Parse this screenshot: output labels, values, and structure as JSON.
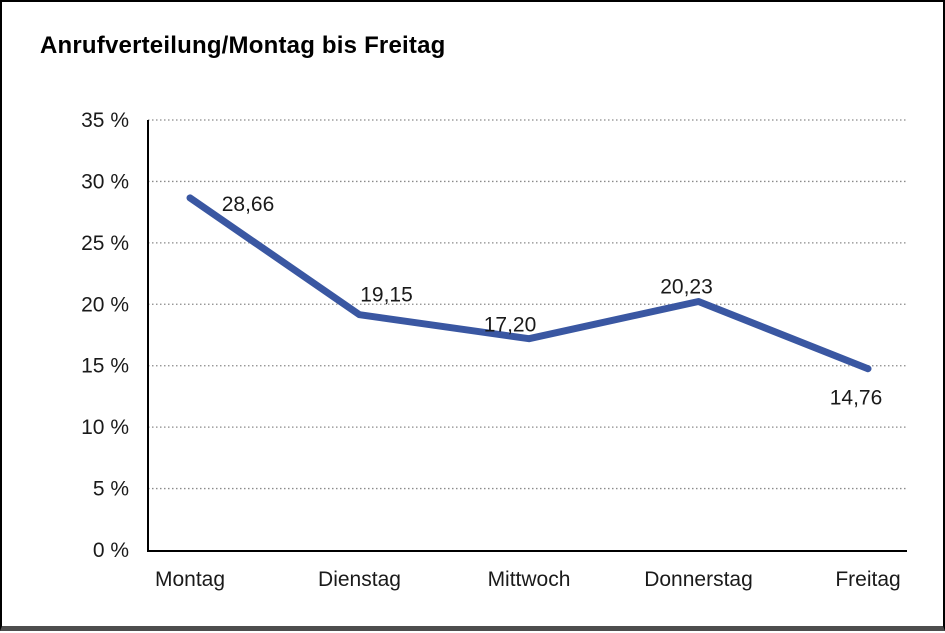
{
  "window": {
    "background": "#ffffff",
    "frame_border_color": "#000000",
    "frame_bottom_edge_color": "#4d4d4d"
  },
  "title": "Anrufverteilung/Montag bis Freitag",
  "chart_data": {
    "type": "line",
    "title": "Anrufverteilung/Montag bis Freitag",
    "categories": [
      "Montag",
      "Dienstag",
      "Mittwoch",
      "Donnerstag",
      "Freitag"
    ],
    "values": [
      28.66,
      19.15,
      17.2,
      20.23,
      14.76
    ],
    "data_labels": [
      "28,66",
      "19,15",
      "17,20",
      "20,23",
      "14,76"
    ],
    "xlabel": "",
    "ylabel": "",
    "ylim": [
      0,
      35
    ],
    "y_tick_step": 5,
    "y_tick_labels": [
      "0 %",
      "5 %",
      "10 %",
      "15 %",
      "20 %",
      "25 %",
      "30 %",
      "35 %"
    ],
    "grid": "horizontal-dotted",
    "legend": "none",
    "line_color": "#3A57A2",
    "axis_color": "#000000",
    "gridline_color": "#8a8a8a",
    "text_color": "#1a1a1a"
  }
}
